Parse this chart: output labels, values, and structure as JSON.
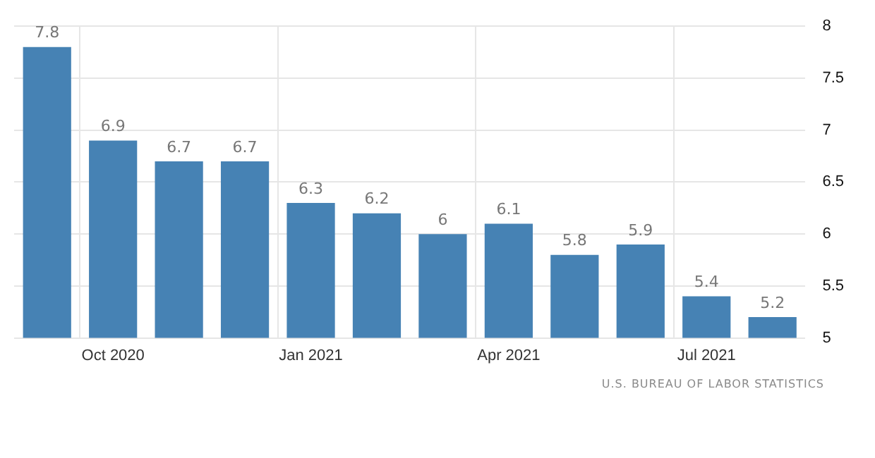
{
  "chart_data": {
    "type": "bar",
    "categories": [
      null,
      "Oct 2020",
      null,
      null,
      "Jan 2021",
      null,
      null,
      "Apr 2021",
      null,
      null,
      "Jul 2021",
      null
    ],
    "values": [
      7.8,
      6.9,
      6.7,
      6.7,
      6.3,
      6.2,
      6,
      6.1,
      5.8,
      5.9,
      5.4,
      5.2
    ],
    "color": "#4682b4",
    "ylim": [
      5,
      8
    ],
    "yticks": [
      5,
      5.5,
      6,
      6.5,
      7,
      7.5,
      8
    ],
    "grid": true,
    "data_labels": true,
    "annotations": [
      "U.S. BUREAU OF LABOR STATISTICS"
    ]
  }
}
